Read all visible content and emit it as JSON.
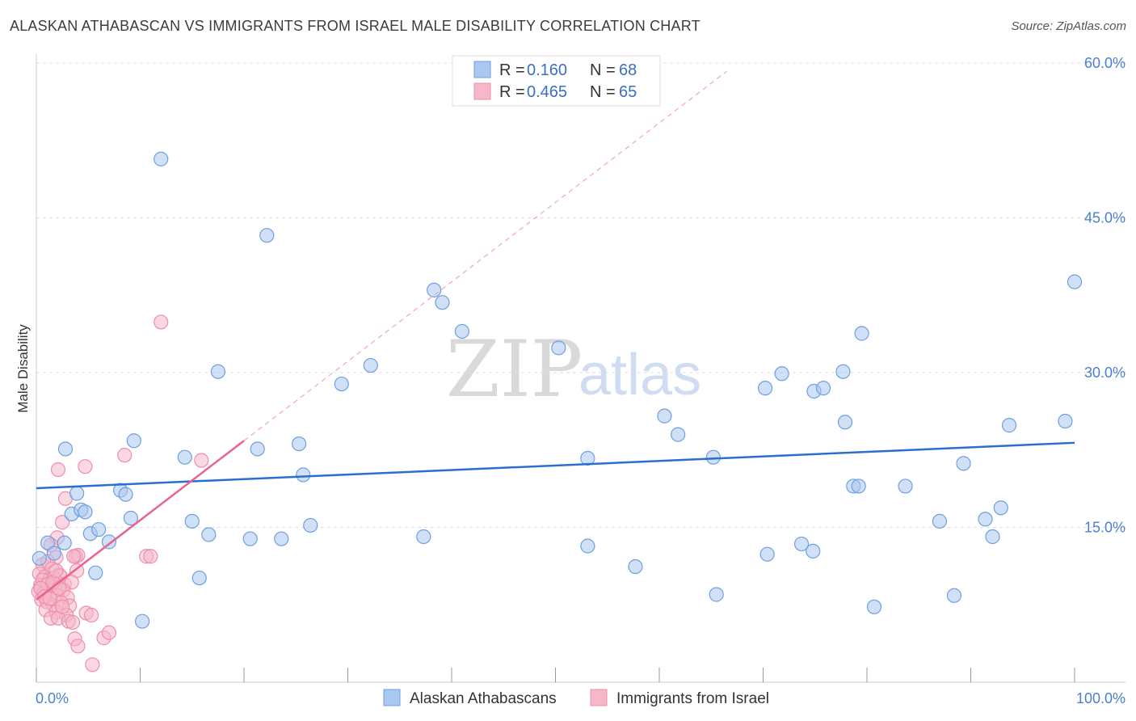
{
  "title": "ALASKAN ATHABASCAN VS IMMIGRANTS FROM ISRAEL MALE DISABILITY CORRELATION CHART",
  "source": "Source: ZipAtlas.com",
  "watermark": {
    "zip": "ZIP",
    "atlas": "atlas"
  },
  "colors": {
    "blue_fill": "#a9c7ef",
    "blue_stroke": "#6f9fe0",
    "blue_line": "#2a6fcf",
    "pink_fill": "#f6b7c9",
    "pink_stroke": "#ec8fab",
    "pink_line": "#e8648f",
    "axis_text": "#4a7fd0",
    "grid": "#dddddd"
  },
  "legend": {
    "rows": [
      {
        "r_label": "R =",
        "r_value": "0.160",
        "n_label": "N =",
        "n_value": "68"
      },
      {
        "r_label": "R =",
        "r_value": "0.465",
        "n_label": "N =",
        "n_value": "65"
      }
    ]
  },
  "chart_data": {
    "type": "scatter",
    "title": "ALASKAN ATHABASCAN VS IMMIGRANTS FROM ISRAEL MALE DISABILITY CORRELATION CHART",
    "xlabel": "",
    "ylabel": "Male Disability",
    "xlim": [
      0,
      100
    ],
    "ylim": [
      0,
      60
    ],
    "x_tick_labels": [
      "0.0%",
      "100.0%"
    ],
    "y_ticks": [
      15,
      30,
      45,
      60
    ],
    "y_tick_labels": [
      "15.0%",
      "30.0%",
      "45.0%",
      "60.0%"
    ],
    "legend_entries": [
      "Alaskan Athabascans",
      "Immigrants from Israel"
    ],
    "series": [
      {
        "name": "Alaskan Athabascans",
        "r": 0.16,
        "n": 68,
        "trend": {
          "x": [
            0,
            100
          ],
          "y": [
            18.8,
            23.2
          ]
        },
        "points": [
          [
            12.0,
            50.7
          ],
          [
            22.2,
            43.3
          ],
          [
            38.3,
            38.0
          ],
          [
            39.1,
            36.8
          ],
          [
            41.0,
            34.0
          ],
          [
            17.5,
            30.1
          ],
          [
            29.4,
            28.9
          ],
          [
            32.2,
            30.7
          ],
          [
            50.3,
            32.4
          ],
          [
            60.5,
            25.8
          ],
          [
            1.1,
            13.5
          ],
          [
            1.7,
            12.5
          ],
          [
            2.7,
            13.5
          ],
          [
            2.8,
            22.6
          ],
          [
            3.4,
            16.3
          ],
          [
            3.9,
            18.3
          ],
          [
            4.3,
            16.7
          ],
          [
            4.7,
            16.5
          ],
          [
            5.2,
            14.4
          ],
          [
            6.0,
            14.8
          ],
          [
            7.0,
            13.6
          ],
          [
            8.1,
            18.6
          ],
          [
            8.6,
            18.2
          ],
          [
            9.1,
            15.9
          ],
          [
            9.4,
            23.4
          ],
          [
            10.2,
            5.9
          ],
          [
            14.3,
            21.8
          ],
          [
            15.0,
            15.6
          ],
          [
            15.7,
            10.1
          ],
          [
            16.6,
            14.3
          ],
          [
            20.6,
            13.9
          ],
          [
            21.3,
            22.6
          ],
          [
            23.6,
            13.9
          ],
          [
            25.3,
            23.1
          ],
          [
            25.7,
            20.1
          ],
          [
            26.4,
            15.2
          ],
          [
            37.3,
            14.1
          ],
          [
            53.1,
            13.2
          ],
          [
            53.1,
            21.7
          ],
          [
            57.7,
            11.2
          ],
          [
            61.8,
            24.0
          ],
          [
            65.2,
            21.8
          ],
          [
            65.5,
            8.5
          ],
          [
            70.2,
            28.5
          ],
          [
            70.4,
            12.4
          ],
          [
            71.8,
            29.9
          ],
          [
            73.7,
            13.4
          ],
          [
            74.8,
            12.7
          ],
          [
            74.9,
            28.2
          ],
          [
            75.8,
            28.5
          ],
          [
            77.7,
            30.1
          ],
          [
            77.9,
            25.2
          ],
          [
            78.7,
            19.0
          ],
          [
            79.2,
            19.0
          ],
          [
            79.5,
            33.8
          ],
          [
            80.7,
            7.3
          ],
          [
            83.7,
            19.0
          ],
          [
            87.0,
            15.6
          ],
          [
            88.4,
            8.4
          ],
          [
            89.3,
            21.2
          ],
          [
            91.4,
            15.8
          ],
          [
            92.1,
            14.1
          ],
          [
            92.9,
            16.9
          ],
          [
            93.7,
            24.9
          ],
          [
            99.1,
            25.3
          ],
          [
            100.0,
            38.8
          ],
          [
            0.3,
            12.0
          ],
          [
            5.7,
            10.6
          ]
        ]
      },
      {
        "name": "Immigrants from Israel",
        "r": 0.465,
        "n": 65,
        "trend": {
          "x": [
            0,
            20
          ],
          "y": [
            8.0,
            23.4
          ]
        },
        "trend_ext": {
          "x": [
            20,
            66.5
          ],
          "y": [
            23.4,
            59.2
          ]
        },
        "points": [
          [
            12.0,
            34.9
          ],
          [
            15.9,
            21.5
          ],
          [
            8.5,
            22.0
          ],
          [
            4.7,
            20.9
          ],
          [
            2.1,
            20.6
          ],
          [
            2.8,
            17.8
          ],
          [
            2.5,
            15.5
          ],
          [
            2.0,
            14.0
          ],
          [
            1.4,
            13.3
          ],
          [
            1.9,
            12.1
          ],
          [
            3.8,
            12.2
          ],
          [
            4.0,
            12.3
          ],
          [
            3.6,
            12.2
          ],
          [
            10.6,
            12.2
          ],
          [
            11.0,
            12.2
          ],
          [
            0.6,
            11.4
          ],
          [
            1.1,
            11.7
          ],
          [
            1.5,
            11.0
          ],
          [
            2.2,
            10.4
          ],
          [
            3.9,
            10.8
          ],
          [
            0.3,
            10.5
          ],
          [
            0.8,
            10.2
          ],
          [
            1.3,
            10.0
          ],
          [
            1.7,
            10.1
          ],
          [
            2.3,
            10.3
          ],
          [
            2.7,
            9.5
          ],
          [
            3.4,
            9.7
          ],
          [
            0.4,
            9.4
          ],
          [
            0.9,
            9.3
          ],
          [
            1.2,
            9.0
          ],
          [
            1.8,
            9.2
          ],
          [
            2.6,
            8.9
          ],
          [
            0.2,
            8.8
          ],
          [
            0.7,
            8.6
          ],
          [
            1.4,
            8.5
          ],
          [
            2.0,
            8.4
          ],
          [
            3.0,
            8.2
          ],
          [
            0.5,
            8.0
          ],
          [
            1.0,
            7.8
          ],
          [
            1.6,
            7.5
          ],
          [
            2.4,
            7.7
          ],
          [
            3.2,
            7.4
          ],
          [
            0.9,
            7.0
          ],
          [
            1.9,
            6.8
          ],
          [
            2.9,
            6.5
          ],
          [
            1.4,
            6.2
          ],
          [
            2.1,
            6.2
          ],
          [
            3.1,
            5.9
          ],
          [
            4.8,
            6.7
          ],
          [
            5.3,
            6.5
          ],
          [
            3.5,
            5.8
          ],
          [
            3.7,
            4.2
          ],
          [
            4.0,
            3.5
          ],
          [
            6.5,
            4.3
          ],
          [
            7.0,
            4.8
          ],
          [
            5.4,
            1.7
          ],
          [
            0.6,
            9.9
          ],
          [
            1.1,
            9.5
          ],
          [
            1.6,
            9.7
          ],
          [
            2.2,
            9.1
          ],
          [
            0.4,
            9.1
          ],
          [
            0.8,
            8.3
          ],
          [
            1.3,
            8.1
          ],
          [
            2.5,
            7.3
          ],
          [
            1.9,
            10.8
          ]
        ]
      }
    ]
  }
}
